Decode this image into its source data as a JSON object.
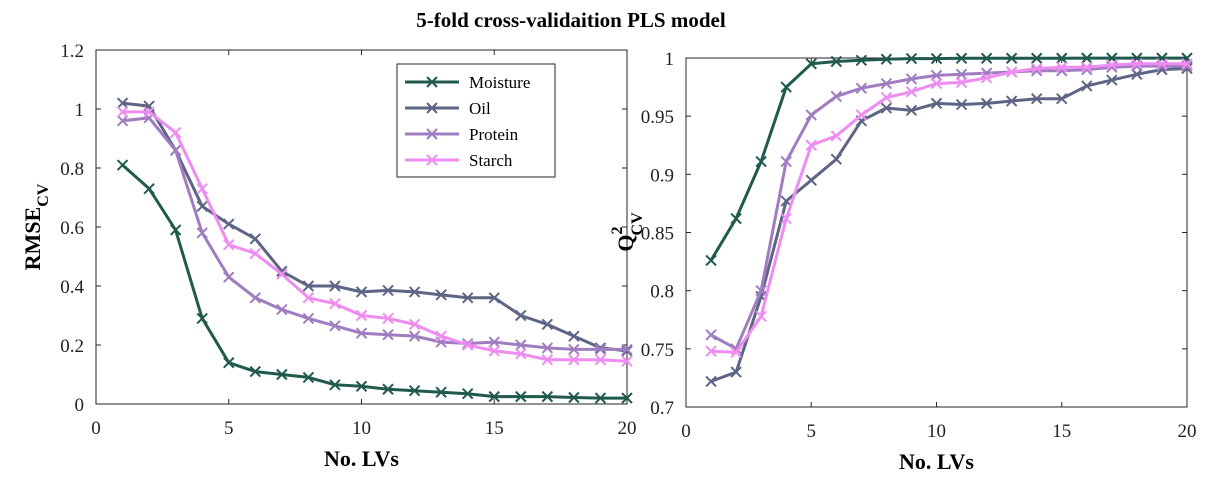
{
  "title": "5-fold cross-validaition  PLS model",
  "colors": {
    "Moisture": "#1f5a4c",
    "Oil": "#5d6585",
    "Protein": "#a07cc0",
    "Starch": "#ee8cf2"
  },
  "chart_data": [
    {
      "type": "line",
      "title": "",
      "xlabel": "No. LVs",
      "ylabel": {
        "main": "RMSE",
        "subscript": "CV"
      },
      "xlim": [
        0,
        20
      ],
      "ylim": [
        0,
        1.2
      ],
      "xticks": [
        0,
        5,
        10,
        15,
        20
      ],
      "yticks": [
        0,
        0.2,
        0.4,
        0.6,
        0.8,
        1,
        1.2
      ],
      "ytick_labels": [
        "0",
        "0.2",
        "0.4",
        "0.6",
        "0.8",
        "1",
        "1.2"
      ],
      "legend": {
        "position": "top-right-inner",
        "entries": [
          "Moisture",
          "Oil",
          "Protein",
          "Starch"
        ]
      },
      "x": [
        1,
        2,
        3,
        4,
        5,
        6,
        7,
        8,
        9,
        10,
        11,
        12,
        13,
        14,
        15,
        16,
        17,
        18,
        19,
        20
      ],
      "series": [
        {
          "name": "Moisture",
          "values": [
            0.81,
            0.73,
            0.59,
            0.29,
            0.14,
            0.11,
            0.1,
            0.09,
            0.065,
            0.06,
            0.05,
            0.045,
            0.04,
            0.035,
            0.025,
            0.025,
            0.025,
            0.022,
            0.02,
            0.02
          ]
        },
        {
          "name": "Oil",
          "values": [
            1.02,
            1.01,
            0.86,
            0.67,
            0.61,
            0.56,
            0.45,
            0.4,
            0.4,
            0.38,
            0.385,
            0.38,
            0.37,
            0.36,
            0.36,
            0.3,
            0.27,
            0.23,
            0.19,
            0.18
          ]
        },
        {
          "name": "Protein",
          "values": [
            0.96,
            0.97,
            0.86,
            0.58,
            0.43,
            0.36,
            0.32,
            0.29,
            0.265,
            0.24,
            0.235,
            0.23,
            0.21,
            0.205,
            0.21,
            0.2,
            0.19,
            0.185,
            0.185,
            0.185
          ]
        },
        {
          "name": "Starch",
          "values": [
            0.99,
            0.99,
            0.92,
            0.73,
            0.54,
            0.51,
            0.44,
            0.36,
            0.34,
            0.3,
            0.29,
            0.27,
            0.23,
            0.2,
            0.18,
            0.17,
            0.15,
            0.15,
            0.15,
            0.145
          ]
        }
      ]
    },
    {
      "type": "line",
      "title": "",
      "xlabel": "No. LVs",
      "ylabel": {
        "main": "Q",
        "superscript": "2",
        "subscript": "CV"
      },
      "xlim": [
        0,
        20
      ],
      "ylim": [
        0.7,
        1
      ],
      "xticks": [
        0,
        5,
        10,
        15,
        20
      ],
      "yticks": [
        0.7,
        0.75,
        0.8,
        0.85,
        0.9,
        0.95,
        1
      ],
      "ytick_labels": [
        "0.7",
        "0.75",
        "0.8",
        "0.85",
        "0.9",
        "0.95",
        "1"
      ],
      "x": [
        1,
        2,
        3,
        4,
        5,
        6,
        7,
        8,
        9,
        10,
        11,
        12,
        13,
        14,
        15,
        16,
        17,
        18,
        19,
        20
      ],
      "series": [
        {
          "name": "Moisture",
          "values": [
            0.826,
            0.862,
            0.911,
            0.975,
            0.995,
            0.997,
            0.998,
            0.999,
            0.9995,
            0.9995,
            0.9997,
            0.9997,
            0.9998,
            0.9998,
            0.9998,
            0.9999,
            0.9999,
            0.9999,
            0.9999,
            0.9999
          ]
        },
        {
          "name": "Oil",
          "values": [
            0.722,
            0.73,
            0.795,
            0.877,
            0.895,
            0.913,
            0.946,
            0.957,
            0.955,
            0.961,
            0.96,
            0.961,
            0.963,
            0.965,
            0.965,
            0.976,
            0.981,
            0.986,
            0.99,
            0.991
          ]
        },
        {
          "name": "Protein",
          "values": [
            0.762,
            0.75,
            0.8,
            0.911,
            0.951,
            0.967,
            0.974,
            0.978,
            0.982,
            0.985,
            0.986,
            0.987,
            0.988,
            0.989,
            0.989,
            0.99,
            0.992,
            0.993,
            0.993,
            0.993
          ]
        },
        {
          "name": "Starch",
          "values": [
            0.748,
            0.747,
            0.778,
            0.862,
            0.925,
            0.933,
            0.951,
            0.966,
            0.971,
            0.978,
            0.979,
            0.983,
            0.988,
            0.991,
            0.992,
            0.992,
            0.994,
            0.995,
            0.995,
            0.995
          ]
        }
      ]
    }
  ]
}
